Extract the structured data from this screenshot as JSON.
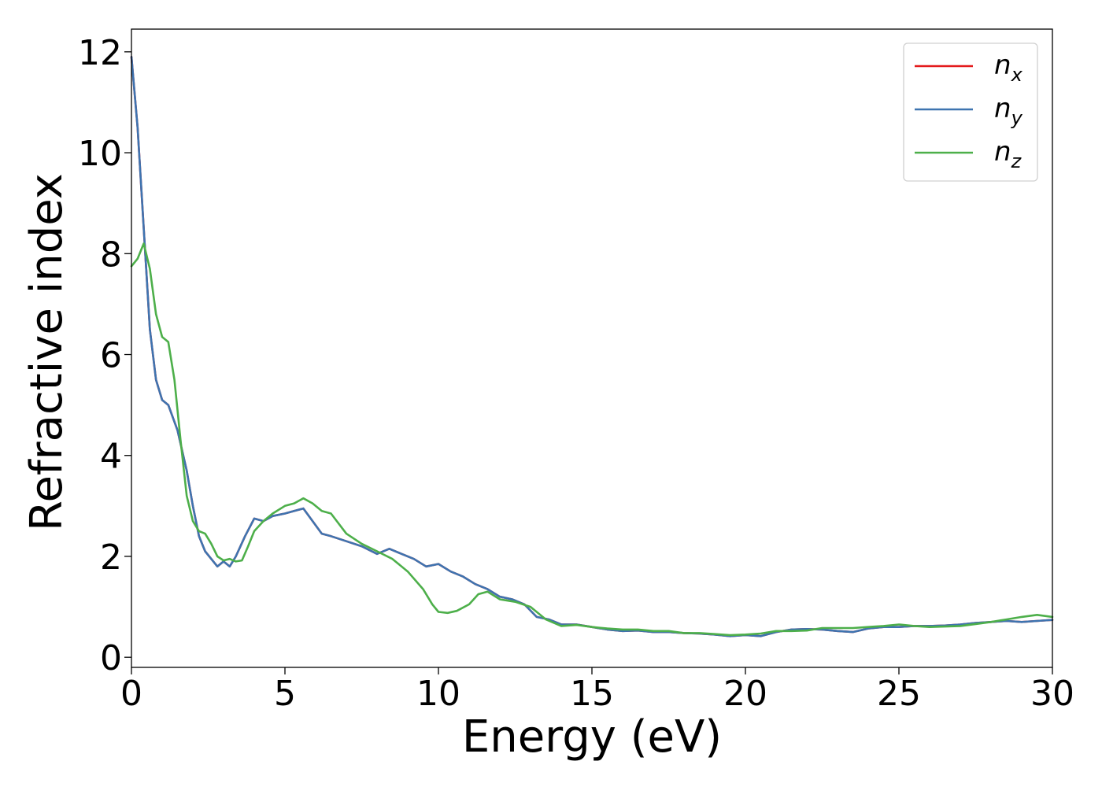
{
  "chart_data": {
    "type": "line",
    "title": "",
    "xlabel": "Energy (eV)",
    "ylabel": "Refractive index",
    "xlim": [
      0,
      30
    ],
    "ylim": [
      -0.2,
      12.45
    ],
    "xticks": [
      0,
      5,
      10,
      15,
      20,
      25,
      30
    ],
    "yticks": [
      0,
      2,
      4,
      6,
      8,
      10,
      12
    ],
    "grid": false,
    "legend_position": "top-right",
    "series": [
      {
        "name": "n",
        "subscript": "x",
        "color": "#e41a1c",
        "x": [
          0,
          0.2,
          0.4,
          0.6,
          0.8,
          1.0,
          1.2,
          1.5,
          1.8,
          2.0,
          2.2,
          2.4,
          2.6,
          2.8,
          3.0,
          3.2,
          3.4,
          3.7,
          4.0,
          4.3,
          4.6,
          5.0,
          5.3,
          5.6,
          5.9,
          6.2,
          6.5,
          7.0,
          7.5,
          8.0,
          8.4,
          8.8,
          9.2,
          9.6,
          10.0,
          10.4,
          10.8,
          11.2,
          11.6,
          12.0,
          12.4,
          12.8,
          13.2,
          13.6,
          14.0,
          14.5,
          15.0,
          15.5,
          16.0,
          16.5,
          17.0,
          17.5,
          18.0,
          18.5,
          19.0,
          19.5,
          20.0,
          20.5,
          21.0,
          21.5,
          22.0,
          22.5,
          23.0,
          23.5,
          24.0,
          24.5,
          25.0,
          25.5,
          26.0,
          26.5,
          27.0,
          27.5,
          28.0,
          28.5,
          29.0,
          29.5,
          30.0
        ],
        "y": [
          11.9,
          10.5,
          8.5,
          6.5,
          5.5,
          5.1,
          5.0,
          4.5,
          3.7,
          3.0,
          2.4,
          2.1,
          1.95,
          1.8,
          1.9,
          1.8,
          2.0,
          2.4,
          2.75,
          2.7,
          2.8,
          2.85,
          2.9,
          2.95,
          2.7,
          2.45,
          2.4,
          2.3,
          2.2,
          2.05,
          2.15,
          2.05,
          1.95,
          1.8,
          1.85,
          1.7,
          1.6,
          1.45,
          1.35,
          1.2,
          1.15,
          1.05,
          0.8,
          0.75,
          0.65,
          0.65,
          0.6,
          0.55,
          0.52,
          0.53,
          0.5,
          0.5,
          0.48,
          0.47,
          0.45,
          0.42,
          0.44,
          0.42,
          0.5,
          0.55,
          0.56,
          0.55,
          0.52,
          0.5,
          0.57,
          0.6,
          0.6,
          0.62,
          0.62,
          0.63,
          0.65,
          0.68,
          0.7,
          0.72,
          0.7,
          0.72,
          0.74
        ]
      },
      {
        "name": "n",
        "subscript": "y",
        "color": "#3e74b0",
        "x": [
          0,
          0.2,
          0.4,
          0.6,
          0.8,
          1.0,
          1.2,
          1.5,
          1.8,
          2.0,
          2.2,
          2.4,
          2.6,
          2.8,
          3.0,
          3.2,
          3.4,
          3.7,
          4.0,
          4.3,
          4.6,
          5.0,
          5.3,
          5.6,
          5.9,
          6.2,
          6.5,
          7.0,
          7.5,
          8.0,
          8.4,
          8.8,
          9.2,
          9.6,
          10.0,
          10.4,
          10.8,
          11.2,
          11.6,
          12.0,
          12.4,
          12.8,
          13.2,
          13.6,
          14.0,
          14.5,
          15.0,
          15.5,
          16.0,
          16.5,
          17.0,
          17.5,
          18.0,
          18.5,
          19.0,
          19.5,
          20.0,
          20.5,
          21.0,
          21.5,
          22.0,
          22.5,
          23.0,
          23.5,
          24.0,
          24.5,
          25.0,
          25.5,
          26.0,
          26.5,
          27.0,
          27.5,
          28.0,
          28.5,
          29.0,
          29.5,
          30.0
        ],
        "y": [
          11.9,
          10.5,
          8.5,
          6.5,
          5.5,
          5.1,
          5.0,
          4.5,
          3.7,
          3.0,
          2.4,
          2.1,
          1.95,
          1.8,
          1.9,
          1.8,
          2.0,
          2.4,
          2.75,
          2.7,
          2.8,
          2.85,
          2.9,
          2.95,
          2.7,
          2.45,
          2.4,
          2.3,
          2.2,
          2.05,
          2.15,
          2.05,
          1.95,
          1.8,
          1.85,
          1.7,
          1.6,
          1.45,
          1.35,
          1.2,
          1.15,
          1.05,
          0.8,
          0.75,
          0.65,
          0.65,
          0.6,
          0.55,
          0.52,
          0.53,
          0.5,
          0.5,
          0.48,
          0.47,
          0.45,
          0.42,
          0.44,
          0.42,
          0.5,
          0.55,
          0.56,
          0.55,
          0.52,
          0.5,
          0.57,
          0.6,
          0.6,
          0.62,
          0.62,
          0.63,
          0.65,
          0.68,
          0.7,
          0.72,
          0.7,
          0.72,
          0.74
        ]
      },
      {
        "name": "n",
        "subscript": "z",
        "color": "#4daf4a",
        "x": [
          0,
          0.2,
          0.4,
          0.6,
          0.8,
          1.0,
          1.2,
          1.4,
          1.6,
          1.8,
          2.0,
          2.2,
          2.4,
          2.6,
          2.8,
          3.0,
          3.2,
          3.4,
          3.6,
          3.8,
          4.0,
          4.3,
          4.6,
          5.0,
          5.3,
          5.6,
          5.9,
          6.2,
          6.5,
          7.0,
          7.5,
          8.0,
          8.5,
          9.0,
          9.5,
          9.8,
          10.0,
          10.3,
          10.6,
          11.0,
          11.3,
          11.6,
          12.0,
          12.5,
          13.0,
          13.5,
          14.0,
          14.5,
          15.0,
          15.5,
          16.0,
          16.5,
          17.0,
          17.5,
          18.0,
          18.5,
          19.0,
          19.5,
          20.0,
          20.5,
          21.0,
          21.5,
          22.0,
          22.5,
          23.0,
          23.5,
          24.0,
          24.5,
          25.0,
          25.5,
          26.0,
          26.5,
          27.0,
          27.5,
          28.0,
          28.5,
          29.0,
          29.5,
          30.0
        ],
        "y": [
          7.75,
          7.9,
          8.2,
          7.7,
          6.8,
          6.35,
          6.25,
          5.5,
          4.3,
          3.2,
          2.7,
          2.5,
          2.45,
          2.25,
          2.0,
          1.92,
          1.95,
          1.9,
          1.92,
          2.2,
          2.5,
          2.7,
          2.85,
          3.0,
          3.05,
          3.15,
          3.05,
          2.9,
          2.85,
          2.45,
          2.25,
          2.1,
          1.95,
          1.7,
          1.35,
          1.05,
          0.9,
          0.88,
          0.92,
          1.05,
          1.25,
          1.3,
          1.15,
          1.1,
          1.0,
          0.75,
          0.62,
          0.64,
          0.6,
          0.57,
          0.55,
          0.55,
          0.52,
          0.52,
          0.48,
          0.48,
          0.46,
          0.44,
          0.45,
          0.47,
          0.52,
          0.52,
          0.53,
          0.58,
          0.58,
          0.58,
          0.6,
          0.62,
          0.65,
          0.62,
          0.6,
          0.61,
          0.62,
          0.66,
          0.7,
          0.75,
          0.8,
          0.84,
          0.8
        ]
      }
    ]
  }
}
